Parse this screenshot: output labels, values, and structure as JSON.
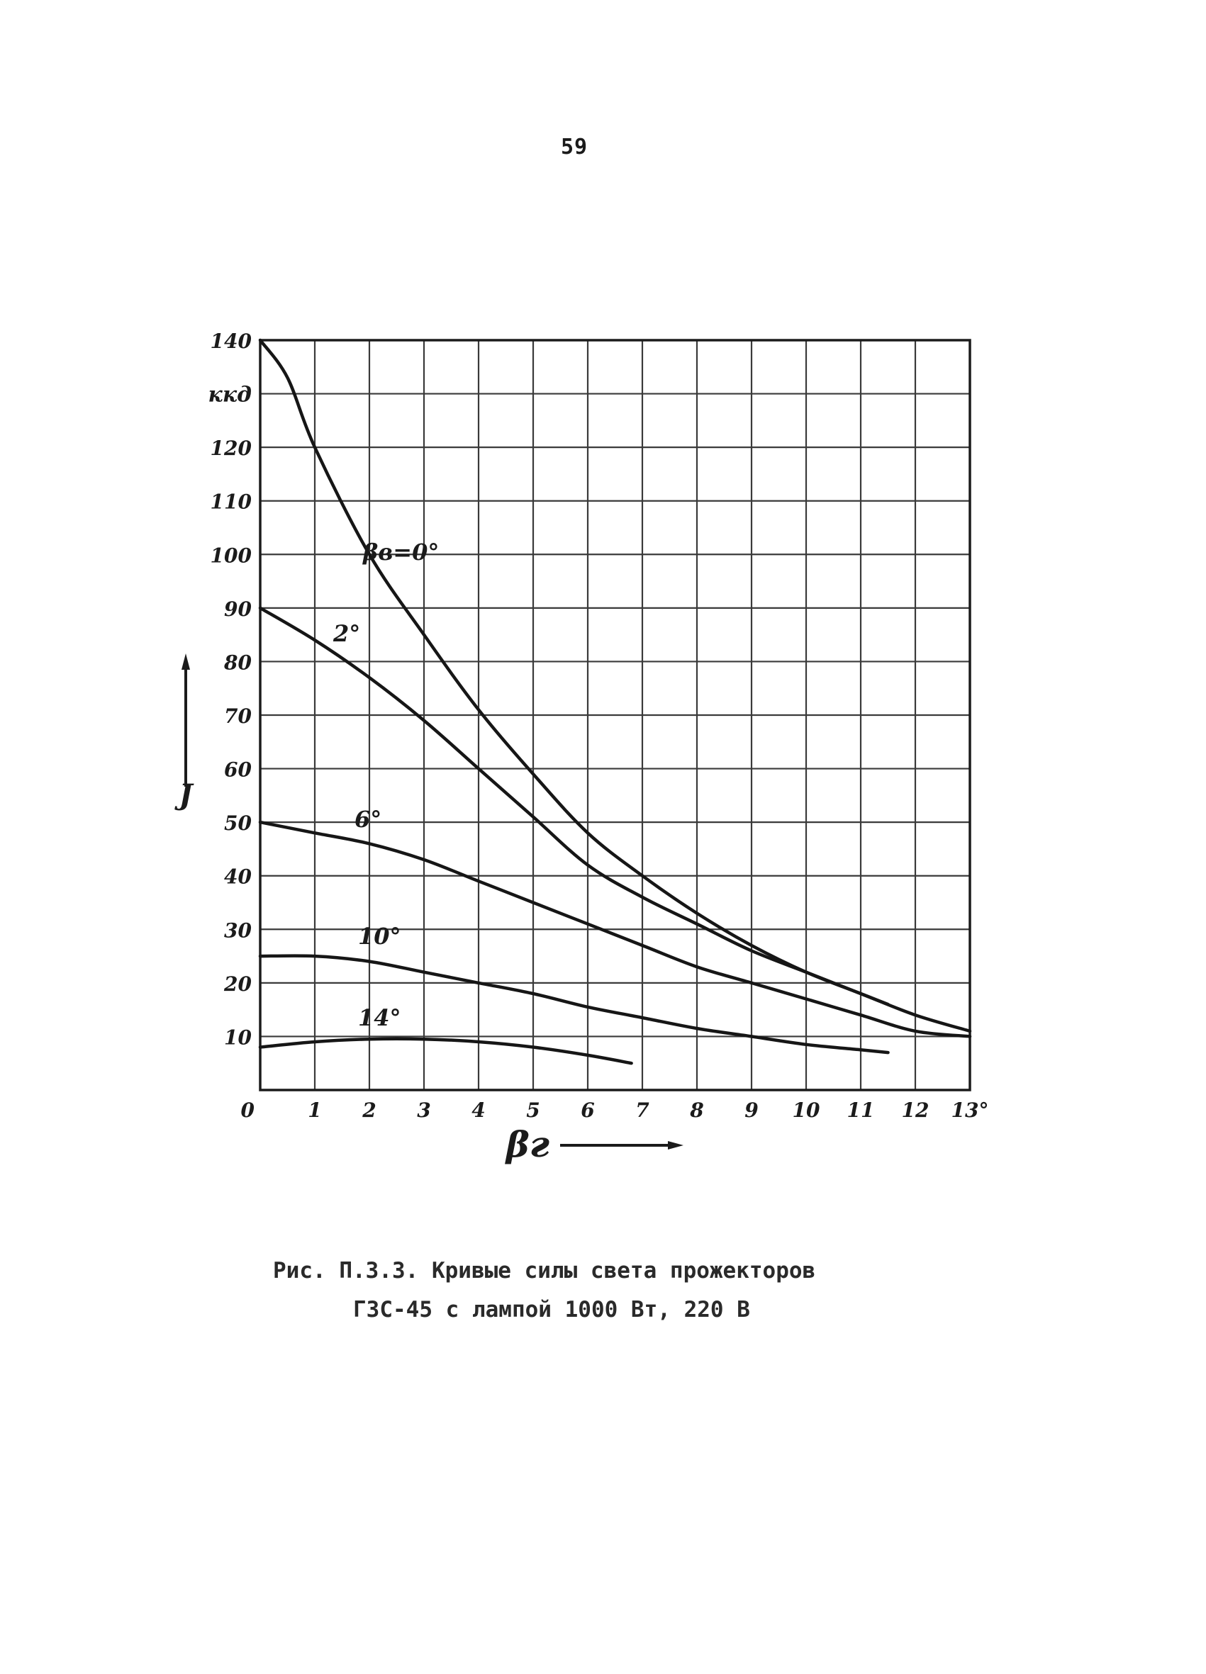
{
  "page": {
    "page_number": "59",
    "caption_line1": "Рис. П.3.3. Кривые силы света прожекторов",
    "caption_line2": "ГЗС-45 с лампой 1000 Вт, 220 В"
  },
  "chart_data": {
    "type": "line",
    "title": "",
    "xlabel": "βг",
    "ylabel": "J",
    "y_unit": "ккд",
    "xlim": [
      0,
      13
    ],
    "ylim": [
      0,
      140
    ],
    "x_ticks": [
      "0",
      "1",
      "2",
      "3",
      "4",
      "5",
      "6",
      "7",
      "8",
      "9",
      "10",
      "11",
      "12",
      "13°"
    ],
    "y_ticks": [
      "10",
      "20",
      "30",
      "40",
      "50",
      "60",
      "70",
      "80",
      "90",
      "100",
      "110",
      "120",
      "140"
    ],
    "grid": true,
    "series": [
      {
        "name": "βв=0°",
        "x": [
          0,
          0.5,
          1,
          2,
          3,
          4,
          5,
          6,
          7,
          8,
          9,
          10,
          11,
          11.5
        ],
        "y": [
          140,
          133,
          120,
          100,
          85,
          71,
          59,
          48,
          40,
          33,
          27,
          22,
          18,
          16
        ]
      },
      {
        "name": "2°",
        "x": [
          0,
          1,
          2,
          3,
          4,
          5,
          6,
          7,
          8,
          9,
          10,
          11,
          12,
          13
        ],
        "y": [
          90,
          84,
          77,
          69,
          60,
          51,
          42,
          36,
          31,
          26,
          22,
          18,
          14,
          11
        ]
      },
      {
        "name": "6°",
        "x": [
          0,
          1,
          2,
          3,
          4,
          5,
          6,
          7,
          8,
          9,
          10,
          11,
          12,
          13
        ],
        "y": [
          50,
          48,
          46,
          43,
          39,
          35,
          31,
          27,
          23,
          20,
          17,
          14,
          11,
          10
        ]
      },
      {
        "name": "10°",
        "x": [
          0,
          1,
          2,
          3,
          4,
          5,
          6,
          7,
          8,
          9,
          10,
          11,
          11.5
        ],
        "y": [
          25,
          25,
          24,
          22,
          20,
          18,
          15.5,
          13.5,
          11.5,
          10,
          8.5,
          7.5,
          7
        ]
      },
      {
        "name": "14°",
        "x": [
          0,
          1,
          2,
          3,
          4,
          5,
          6,
          6.8
        ],
        "y": [
          8,
          9,
          9.5,
          9.5,
          9,
          8,
          6.5,
          5
        ]
      }
    ]
  }
}
